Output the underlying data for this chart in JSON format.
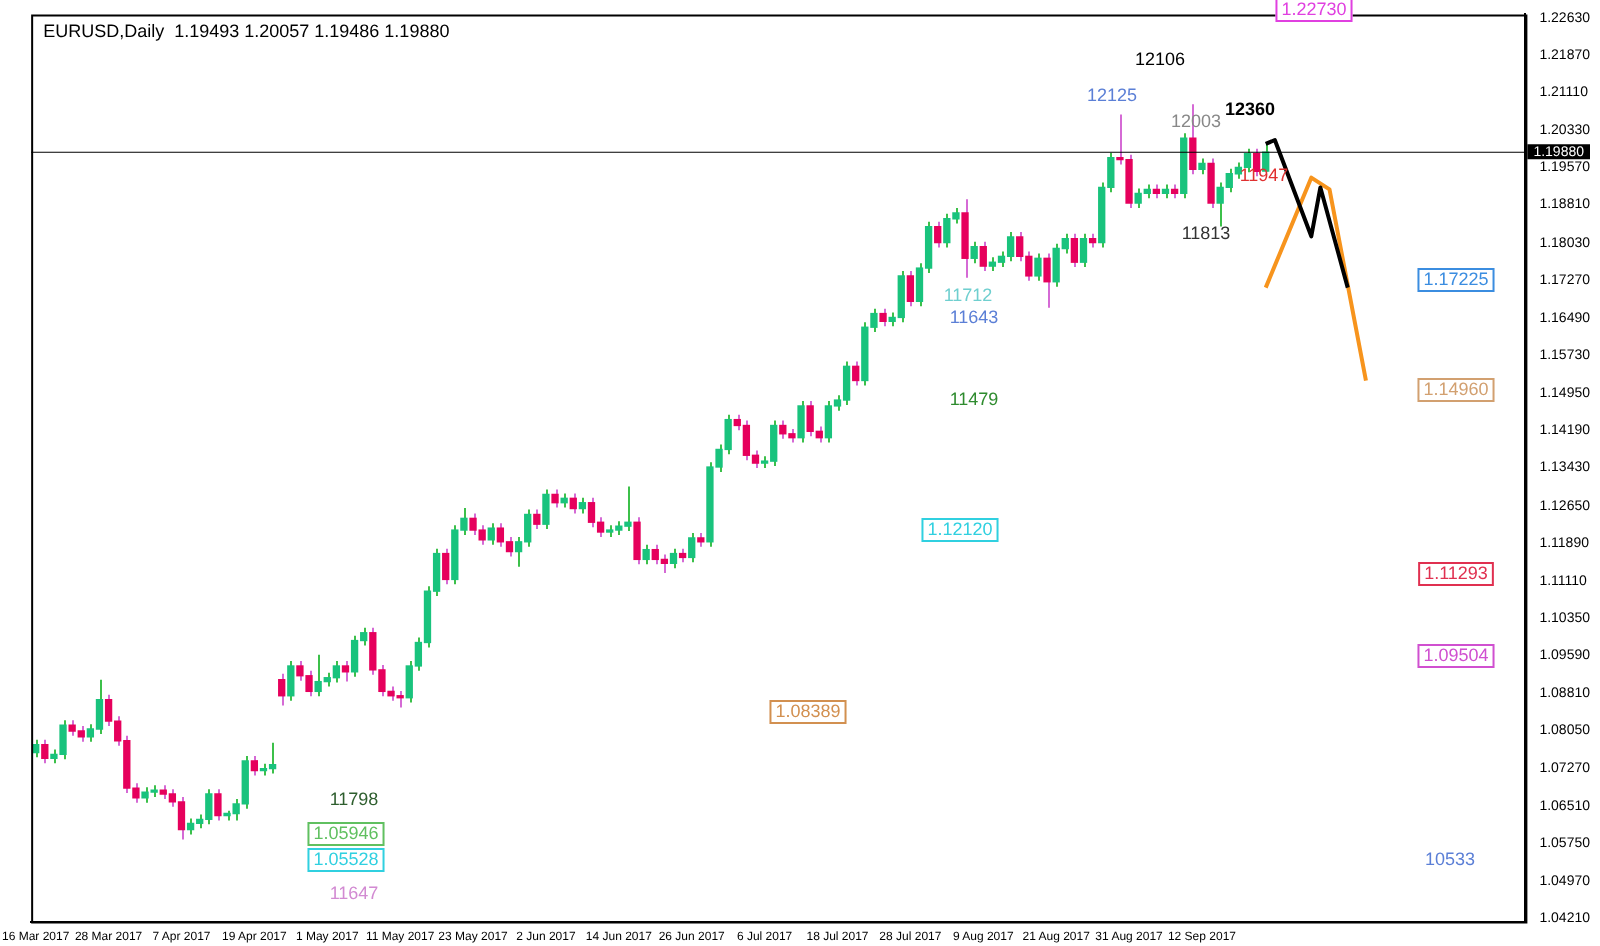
{
  "chart_data": {
    "type": "candlestick",
    "title": "EURUSD,Daily  1.19493 1.20057 1.19486 1.19880",
    "categories": [
      "16 Mar 2017",
      null,
      null,
      null,
      null,
      null,
      null,
      null,
      "28 Mar 2017",
      null,
      null,
      null,
      null,
      null,
      null,
      null,
      "7 Apr 2017",
      null,
      null,
      null,
      null,
      null,
      null,
      null,
      "19 Apr 2017",
      null,
      null,
      null,
      null,
      null,
      null,
      null,
      "1 May 2017",
      null,
      null,
      null,
      null,
      null,
      null,
      null,
      "11 May 2017",
      null,
      null,
      null,
      null,
      null,
      null,
      null,
      "23 May 2017",
      null,
      null,
      null,
      null,
      null,
      null,
      null,
      "2 Jun 2017",
      null,
      null,
      null,
      null,
      null,
      null,
      null,
      "14 Jun 2017",
      null,
      null,
      null,
      null,
      null,
      null,
      null,
      "26 Jun 2017",
      null,
      null,
      null,
      null,
      null,
      null,
      null,
      "6 Jul 2017",
      null,
      null,
      null,
      null,
      null,
      null,
      null,
      "18 Jul 2017",
      null,
      null,
      null,
      null,
      null,
      null,
      null,
      "28 Jul 2017",
      null,
      null,
      null,
      null,
      null,
      null,
      null,
      "9 Aug 2017",
      null,
      null,
      null,
      null,
      null,
      null,
      null,
      "21 Aug 2017",
      null,
      null,
      null,
      null,
      null,
      null,
      null,
      "31 Aug 2017",
      null,
      null,
      null,
      null,
      null,
      null,
      null,
      "12 Sep 2017",
      null,
      null,
      null,
      null,
      null,
      null,
      null,
      null,
      null,
      null,
      null,
      null,
      null,
      null,
      null,
      null,
      null,
      null,
      null,
      null,
      null,
      null,
      null,
      null,
      null,
      null,
      null,
      null,
      null,
      null,
      null,
      null,
      null,
      null,
      null
    ],
    "ohlc": [
      [
        1.076,
        1.0786,
        1.075,
        1.0776
      ],
      [
        1.0776,
        1.0786,
        1.0738,
        1.0748
      ],
      [
        1.0748,
        1.0766,
        1.0738,
        1.0756
      ],
      [
        1.0756,
        1.0826,
        1.0746,
        1.0816
      ],
      [
        1.0816,
        1.0826,
        1.0794,
        1.0804
      ],
      [
        1.0804,
        1.0814,
        1.0782,
        1.0792
      ],
      [
        1.0792,
        1.0818,
        1.0782,
        1.0808
      ],
      [
        1.0808,
        1.0909,
        1.0798,
        1.0868
      ],
      [
        1.0868,
        1.0878,
        1.0814,
        1.0824
      ],
      [
        1.0824,
        1.0834,
        1.0774,
        1.0784
      ],
      [
        1.0784,
        1.0794,
        1.0677,
        1.0687
      ],
      [
        1.0687,
        1.0697,
        1.0657,
        1.0667
      ],
      [
        1.0667,
        1.0689,
        1.0657,
        1.0679
      ],
      [
        1.0679,
        1.0693,
        1.0669,
        1.0683
      ],
      [
        1.0683,
        1.0693,
        1.0665,
        1.0675
      ],
      [
        1.0675,
        1.0685,
        1.0649,
        1.0659
      ],
      [
        1.0659,
        1.0669,
        1.0582,
        1.0602
      ],
      [
        1.0602,
        1.0625,
        1.0592,
        1.0615
      ],
      [
        1.0615,
        1.0633,
        1.0605,
        1.0623
      ],
      [
        1.0623,
        1.0685,
        1.0613,
        1.0675
      ],
      [
        1.0675,
        1.0685,
        1.0621,
        1.0631
      ],
      [
        1.0631,
        1.0641,
        1.0621,
        1.0635
      ],
      [
        1.0635,
        1.0665,
        1.0621,
        1.0655
      ],
      [
        1.0655,
        1.0753,
        1.0645,
        1.0743
      ],
      [
        1.0743,
        1.0753,
        1.0713,
        1.0723
      ],
      [
        1.0723,
        1.0737,
        1.0713,
        1.0727
      ],
      [
        1.0727,
        1.078,
        1.0717,
        1.0735
      ],
      [
        1.0909,
        1.0921,
        1.0856,
        1.0876
      ],
      [
        1.0876,
        1.0947,
        1.0866,
        1.0937
      ],
      [
        1.0937,
        1.0947,
        1.0907,
        1.0917
      ],
      [
        1.0917,
        1.0927,
        1.0875,
        1.0885
      ],
      [
        1.0885,
        1.096,
        1.0875,
        1.0905
      ],
      [
        1.0905,
        1.0923,
        1.0895,
        1.0913
      ],
      [
        1.0913,
        1.0947,
        1.0903,
        1.0937
      ],
      [
        1.0937,
        1.0947,
        1.0905,
        1.0925
      ],
      [
        1.0925,
        1.0999,
        1.0915,
        1.0989
      ],
      [
        1.0989,
        1.1015,
        1.0979,
        1.1005
      ],
      [
        1.1005,
        1.1015,
        1.0919,
        1.0929
      ],
      [
        1.0929,
        1.0939,
        1.0875,
        1.0885
      ],
      [
        1.0885,
        1.0895,
        1.0866,
        1.0876
      ],
      [
        1.0876,
        1.0886,
        1.0852,
        1.0872
      ],
      [
        1.0872,
        1.0947,
        1.0862,
        1.0937
      ],
      [
        1.0937,
        1.0995,
        1.0927,
        1.0985
      ],
      [
        1.0985,
        1.11,
        1.0975,
        1.109
      ],
      [
        1.109,
        1.1177,
        1.108,
        1.1167
      ],
      [
        1.1167,
        1.1177,
        1.1104,
        1.1114
      ],
      [
        1.1114,
        1.1225,
        1.1104,
        1.1215
      ],
      [
        1.1215,
        1.126,
        1.1205,
        1.1239
      ],
      [
        1.1239,
        1.1249,
        1.1205,
        1.1215
      ],
      [
        1.1215,
        1.1225,
        1.1185,
        1.1195
      ],
      [
        1.1195,
        1.1229,
        1.1185,
        1.1219
      ],
      [
        1.1219,
        1.1229,
        1.1181,
        1.1191
      ],
      [
        1.1191,
        1.1201,
        1.1161,
        1.1171
      ],
      [
        1.1171,
        1.1201,
        1.114,
        1.1191
      ],
      [
        1.1191,
        1.1257,
        1.1181,
        1.1247
      ],
      [
        1.1247,
        1.1257,
        1.1217,
        1.1227
      ],
      [
        1.1227,
        1.1298,
        1.1217,
        1.1288
      ],
      [
        1.1288,
        1.1298,
        1.1261,
        1.1271
      ],
      [
        1.1271,
        1.129,
        1.1261,
        1.128
      ],
      [
        1.128,
        1.129,
        1.1249,
        1.1259
      ],
      [
        1.1259,
        1.1281,
        1.1249,
        1.1271
      ],
      [
        1.1271,
        1.1281,
        1.1221,
        1.1231
      ],
      [
        1.1231,
        1.1241,
        1.1201,
        1.1211
      ],
      [
        1.1211,
        1.1225,
        1.1201,
        1.1215
      ],
      [
        1.1215,
        1.1233,
        1.1205,
        1.1223
      ],
      [
        1.1223,
        1.1304,
        1.1213,
        1.1231
      ],
      [
        1.1231,
        1.1241,
        1.1145,
        1.1155
      ],
      [
        1.1155,
        1.1185,
        1.1145,
        1.1175
      ],
      [
        1.1175,
        1.1185,
        1.1145,
        1.1155
      ],
      [
        1.1155,
        1.1165,
        1.1127,
        1.1147
      ],
      [
        1.1147,
        1.1177,
        1.1137,
        1.1167
      ],
      [
        1.1167,
        1.1177,
        1.1149,
        1.1159
      ],
      [
        1.1159,
        1.1209,
        1.1149,
        1.1199
      ],
      [
        1.1199,
        1.1209,
        1.1181,
        1.1191
      ],
      [
        1.1191,
        1.1354,
        1.1181,
        1.1344
      ],
      [
        1.1344,
        1.139,
        1.1334,
        1.138
      ],
      [
        1.138,
        1.1451,
        1.137,
        1.1441
      ],
      [
        1.1441,
        1.1451,
        1.1419,
        1.1429
      ],
      [
        1.1429,
        1.1439,
        1.1358,
        1.1368
      ],
      [
        1.1368,
        1.1378,
        1.1342,
        1.1352
      ],
      [
        1.1352,
        1.1366,
        1.1342,
        1.1356
      ],
      [
        1.1356,
        1.1439,
        1.1346,
        1.1429
      ],
      [
        1.1429,
        1.1439,
        1.1402,
        1.1412
      ],
      [
        1.1412,
        1.1422,
        1.1394,
        1.1404
      ],
      [
        1.1404,
        1.1479,
        1.1394,
        1.1469
      ],
      [
        1.1469,
        1.1479,
        1.1407,
        1.1417
      ],
      [
        1.1417,
        1.1427,
        1.1394,
        1.1404
      ],
      [
        1.1404,
        1.1479,
        1.1394,
        1.1469
      ],
      [
        1.1469,
        1.1491,
        1.1459,
        1.1481
      ],
      [
        1.1481,
        1.156,
        1.1471,
        1.155
      ],
      [
        1.155,
        1.156,
        1.1511,
        1.1521
      ],
      [
        1.1521,
        1.164,
        1.1511,
        1.163
      ],
      [
        1.163,
        1.1668,
        1.162,
        1.1658
      ],
      [
        1.1658,
        1.1668,
        1.1632,
        1.1642
      ],
      [
        1.1642,
        1.166,
        1.1632,
        1.165
      ],
      [
        1.165,
        1.1745,
        1.164,
        1.1735
      ],
      [
        1.1735,
        1.1745,
        1.1673,
        1.1683
      ],
      [
        1.1683,
        1.1761,
        1.1673,
        1.1751
      ],
      [
        1.1751,
        1.1846,
        1.1741,
        1.1836
      ],
      [
        1.1836,
        1.1846,
        1.1793,
        1.1803
      ],
      [
        1.1803,
        1.1862,
        1.1793,
        1.1852
      ],
      [
        1.1852,
        1.1874,
        1.1842,
        1.1864
      ],
      [
        1.1864,
        1.1892,
        1.1731,
        1.1771
      ],
      [
        1.1771,
        1.1805,
        1.1761,
        1.1795
      ],
      [
        1.1795,
        1.1805,
        1.1745,
        1.1755
      ],
      [
        1.1755,
        1.1773,
        1.1745,
        1.1763
      ],
      [
        1.1763,
        1.1785,
        1.1753,
        1.1775
      ],
      [
        1.1775,
        1.1825,
        1.1765,
        1.1815
      ],
      [
        1.1815,
        1.1825,
        1.1765,
        1.1775
      ],
      [
        1.1775,
        1.1785,
        1.1725,
        1.1735
      ],
      [
        1.1735,
        1.1781,
        1.1725,
        1.1771
      ],
      [
        1.1771,
        1.1781,
        1.167,
        1.1723
      ],
      [
        1.1723,
        1.1801,
        1.1713,
        1.1791
      ],
      [
        1.1791,
        1.1821,
        1.1781,
        1.1811
      ],
      [
        1.1811,
        1.1821,
        1.1753,
        1.1763
      ],
      [
        1.1763,
        1.1821,
        1.1753,
        1.1811
      ],
      [
        1.1811,
        1.1821,
        1.1793,
        1.1803
      ],
      [
        1.1803,
        1.1926,
        1.1793,
        1.1916
      ],
      [
        1.1916,
        1.1987,
        1.1906,
        1.1977
      ],
      [
        1.1977,
        1.2065,
        1.1963,
        1.1973
      ],
      [
        1.1973,
        1.1983,
        1.1874,
        1.1884
      ],
      [
        1.1884,
        1.1914,
        1.1874,
        1.1904
      ],
      [
        1.1904,
        1.1922,
        1.1894,
        1.1912
      ],
      [
        1.1912,
        1.1922,
        1.1894,
        1.1904
      ],
      [
        1.1904,
        1.1922,
        1.1894,
        1.1912
      ],
      [
        1.1912,
        1.1922,
        1.1894,
        1.1904
      ],
      [
        1.1904,
        1.2027,
        1.1894,
        1.2017
      ],
      [
        1.2017,
        1.2086,
        1.1943,
        1.1953
      ],
      [
        1.1953,
        1.1975,
        1.1943,
        1.1965
      ],
      [
        1.1965,
        1.1975,
        1.1874,
        1.1884
      ],
      [
        1.1884,
        1.1926,
        1.1836,
        1.1916
      ],
      [
        1.1916,
        1.1954,
        1.1906,
        1.1944
      ],
      [
        1.1944,
        1.1967,
        1.1934,
        1.1957
      ],
      [
        1.1957,
        1.1995,
        1.1947,
        1.1985
      ],
      [
        1.1985,
        1.1995,
        1.1939,
        1.1949
      ],
      [
        1.19493,
        1.20057,
        1.19486,
        1.1988
      ],
      null,
      null,
      null,
      null,
      null,
      null,
      null,
      null,
      null,
      null,
      null,
      null,
      null,
      null,
      null,
      null,
      null,
      null,
      null,
      null,
      null,
      null,
      null,
      null,
      null,
      null,
      null,
      null
    ],
    "series": [
      {
        "type": "line",
        "color": "#000000",
        "values": [
          null,
          null,
          null,
          null,
          null,
          null,
          null,
          null,
          null,
          null,
          null,
          null,
          null,
          null,
          null,
          null,
          null,
          null,
          null,
          null,
          null,
          null,
          null,
          null,
          null,
          null,
          null,
          null,
          null,
          null,
          null,
          null,
          null,
          null,
          null,
          null,
          null,
          null,
          null,
          null,
          null,
          null,
          null,
          null,
          null,
          null,
          null,
          null,
          null,
          null,
          null,
          null,
          null,
          null,
          null,
          null,
          null,
          null,
          null,
          null,
          null,
          null,
          null,
          null,
          null,
          null,
          null,
          null,
          null,
          null,
          null,
          null,
          null,
          null,
          null,
          null,
          null,
          null,
          null,
          null,
          null,
          null,
          null,
          null,
          null,
          null,
          null,
          null,
          null,
          null,
          null,
          null,
          null,
          null,
          null,
          null,
          null,
          null,
          null,
          null,
          null,
          null,
          null,
          null,
          null,
          null,
          null,
          null,
          null,
          null,
          null,
          null,
          null,
          null,
          null,
          null,
          null,
          null,
          null,
          null,
          null,
          null,
          null,
          null,
          null,
          null,
          null,
          null,
          null,
          null,
          null,
          null,
          null,
          null,
          null,
          1.2005,
          1.2013,
          null,
          null,
          null,
          1.1816,
          1.1916,
          null,
          null,
          1.1711,
          null,
          null,
          null,
          null,
          null,
          null,
          null,
          null,
          null,
          null,
          null,
          null,
          null,
          null,
          null,
          null,
          null,
          null,
          null
        ]
      },
      {
        "type": "line",
        "color": "#f7941d",
        "values": [
          null,
          null,
          null,
          null,
          null,
          null,
          null,
          null,
          null,
          null,
          null,
          null,
          null,
          null,
          null,
          null,
          null,
          null,
          null,
          null,
          null,
          null,
          null,
          null,
          null,
          null,
          null,
          null,
          null,
          null,
          null,
          null,
          null,
          null,
          null,
          null,
          null,
          null,
          null,
          null,
          null,
          null,
          null,
          null,
          null,
          null,
          null,
          null,
          null,
          null,
          null,
          null,
          null,
          null,
          null,
          null,
          null,
          null,
          null,
          null,
          null,
          null,
          null,
          null,
          null,
          null,
          null,
          null,
          null,
          null,
          null,
          null,
          null,
          null,
          null,
          null,
          null,
          null,
          null,
          null,
          null,
          null,
          null,
          null,
          null,
          null,
          null,
          null,
          null,
          null,
          null,
          null,
          null,
          null,
          null,
          null,
          null,
          null,
          null,
          null,
          null,
          null,
          null,
          null,
          null,
          null,
          null,
          null,
          null,
          null,
          null,
          null,
          null,
          null,
          null,
          null,
          null,
          null,
          null,
          null,
          null,
          null,
          null,
          null,
          null,
          null,
          null,
          null,
          null,
          null,
          null,
          null,
          null,
          null,
          null,
          1.1711,
          null,
          null,
          null,
          null,
          1.1936,
          null,
          1.1912,
          null,
          null,
          null,
          1.1521,
          null,
          null,
          null,
          null,
          null,
          null,
          null,
          null,
          null,
          null,
          null,
          null,
          null,
          null,
          null,
          null,
          null
        ]
      }
    ],
    "ylim": [
      1.0414,
      1.227
    ],
    "yticks": [
      {
        "value": 1.2263,
        "label": "1.22630"
      },
      {
        "value": 1.2187,
        "label": "1.21870"
      },
      {
        "value": 1.2111,
        "label": "1.21110"
      },
      {
        "value": 1.2033,
        "label": "1.20330"
      },
      {
        "value": 1.1957,
        "label": "1.19570"
      },
      {
        "value": 1.1881,
        "label": "1.18810"
      },
      {
        "value": 1.1803,
        "label": "1.18030"
      },
      {
        "value": 1.1727,
        "label": "1.17270"
      },
      {
        "value": 1.1649,
        "label": "1.16490"
      },
      {
        "value": 1.1573,
        "label": "1.15730"
      },
      {
        "value": 1.1495,
        "label": "1.14950"
      },
      {
        "value": 1.1419,
        "label": "1.14190"
      },
      {
        "value": 1.1343,
        "label": "1.13430"
      },
      {
        "value": 1.1265,
        "label": "1.12650"
      },
      {
        "value": 1.1189,
        "label": "1.11890"
      },
      {
        "value": 1.1111,
        "label": "1.11110"
      },
      {
        "value": 1.1035,
        "label": "1.10350"
      },
      {
        "value": 1.0959,
        "label": "1.09590"
      },
      {
        "value": 1.0881,
        "label": "1.08810"
      },
      {
        "value": 1.0805,
        "label": "1.08050"
      },
      {
        "value": 1.0727,
        "label": "1.07270"
      },
      {
        "value": 1.0651,
        "label": "1.06510"
      },
      {
        "value": 1.0575,
        "label": "1.05750"
      },
      {
        "value": 1.0497,
        "label": "1.04970"
      },
      {
        "value": 1.0421,
        "label": "1.04210"
      }
    ],
    "ref_lines": [
      {
        "axis": "y",
        "value": 1.1988,
        "label": "1.19880",
        "color": "#000000"
      }
    ],
    "annotations": [
      "12106",
      "12125",
      "12360",
      "12003",
      "11947",
      "11813",
      "11712",
      "11643",
      "11479",
      "11798",
      "11647",
      "10533",
      "1.22730",
      "1.17225",
      "1.14960",
      "1.11293",
      "1.09504",
      "1.12120",
      "1.08389",
      "1.05946",
      "1.05528"
    ],
    "marker": "none",
    "grid": false,
    "legend": false
  }
}
